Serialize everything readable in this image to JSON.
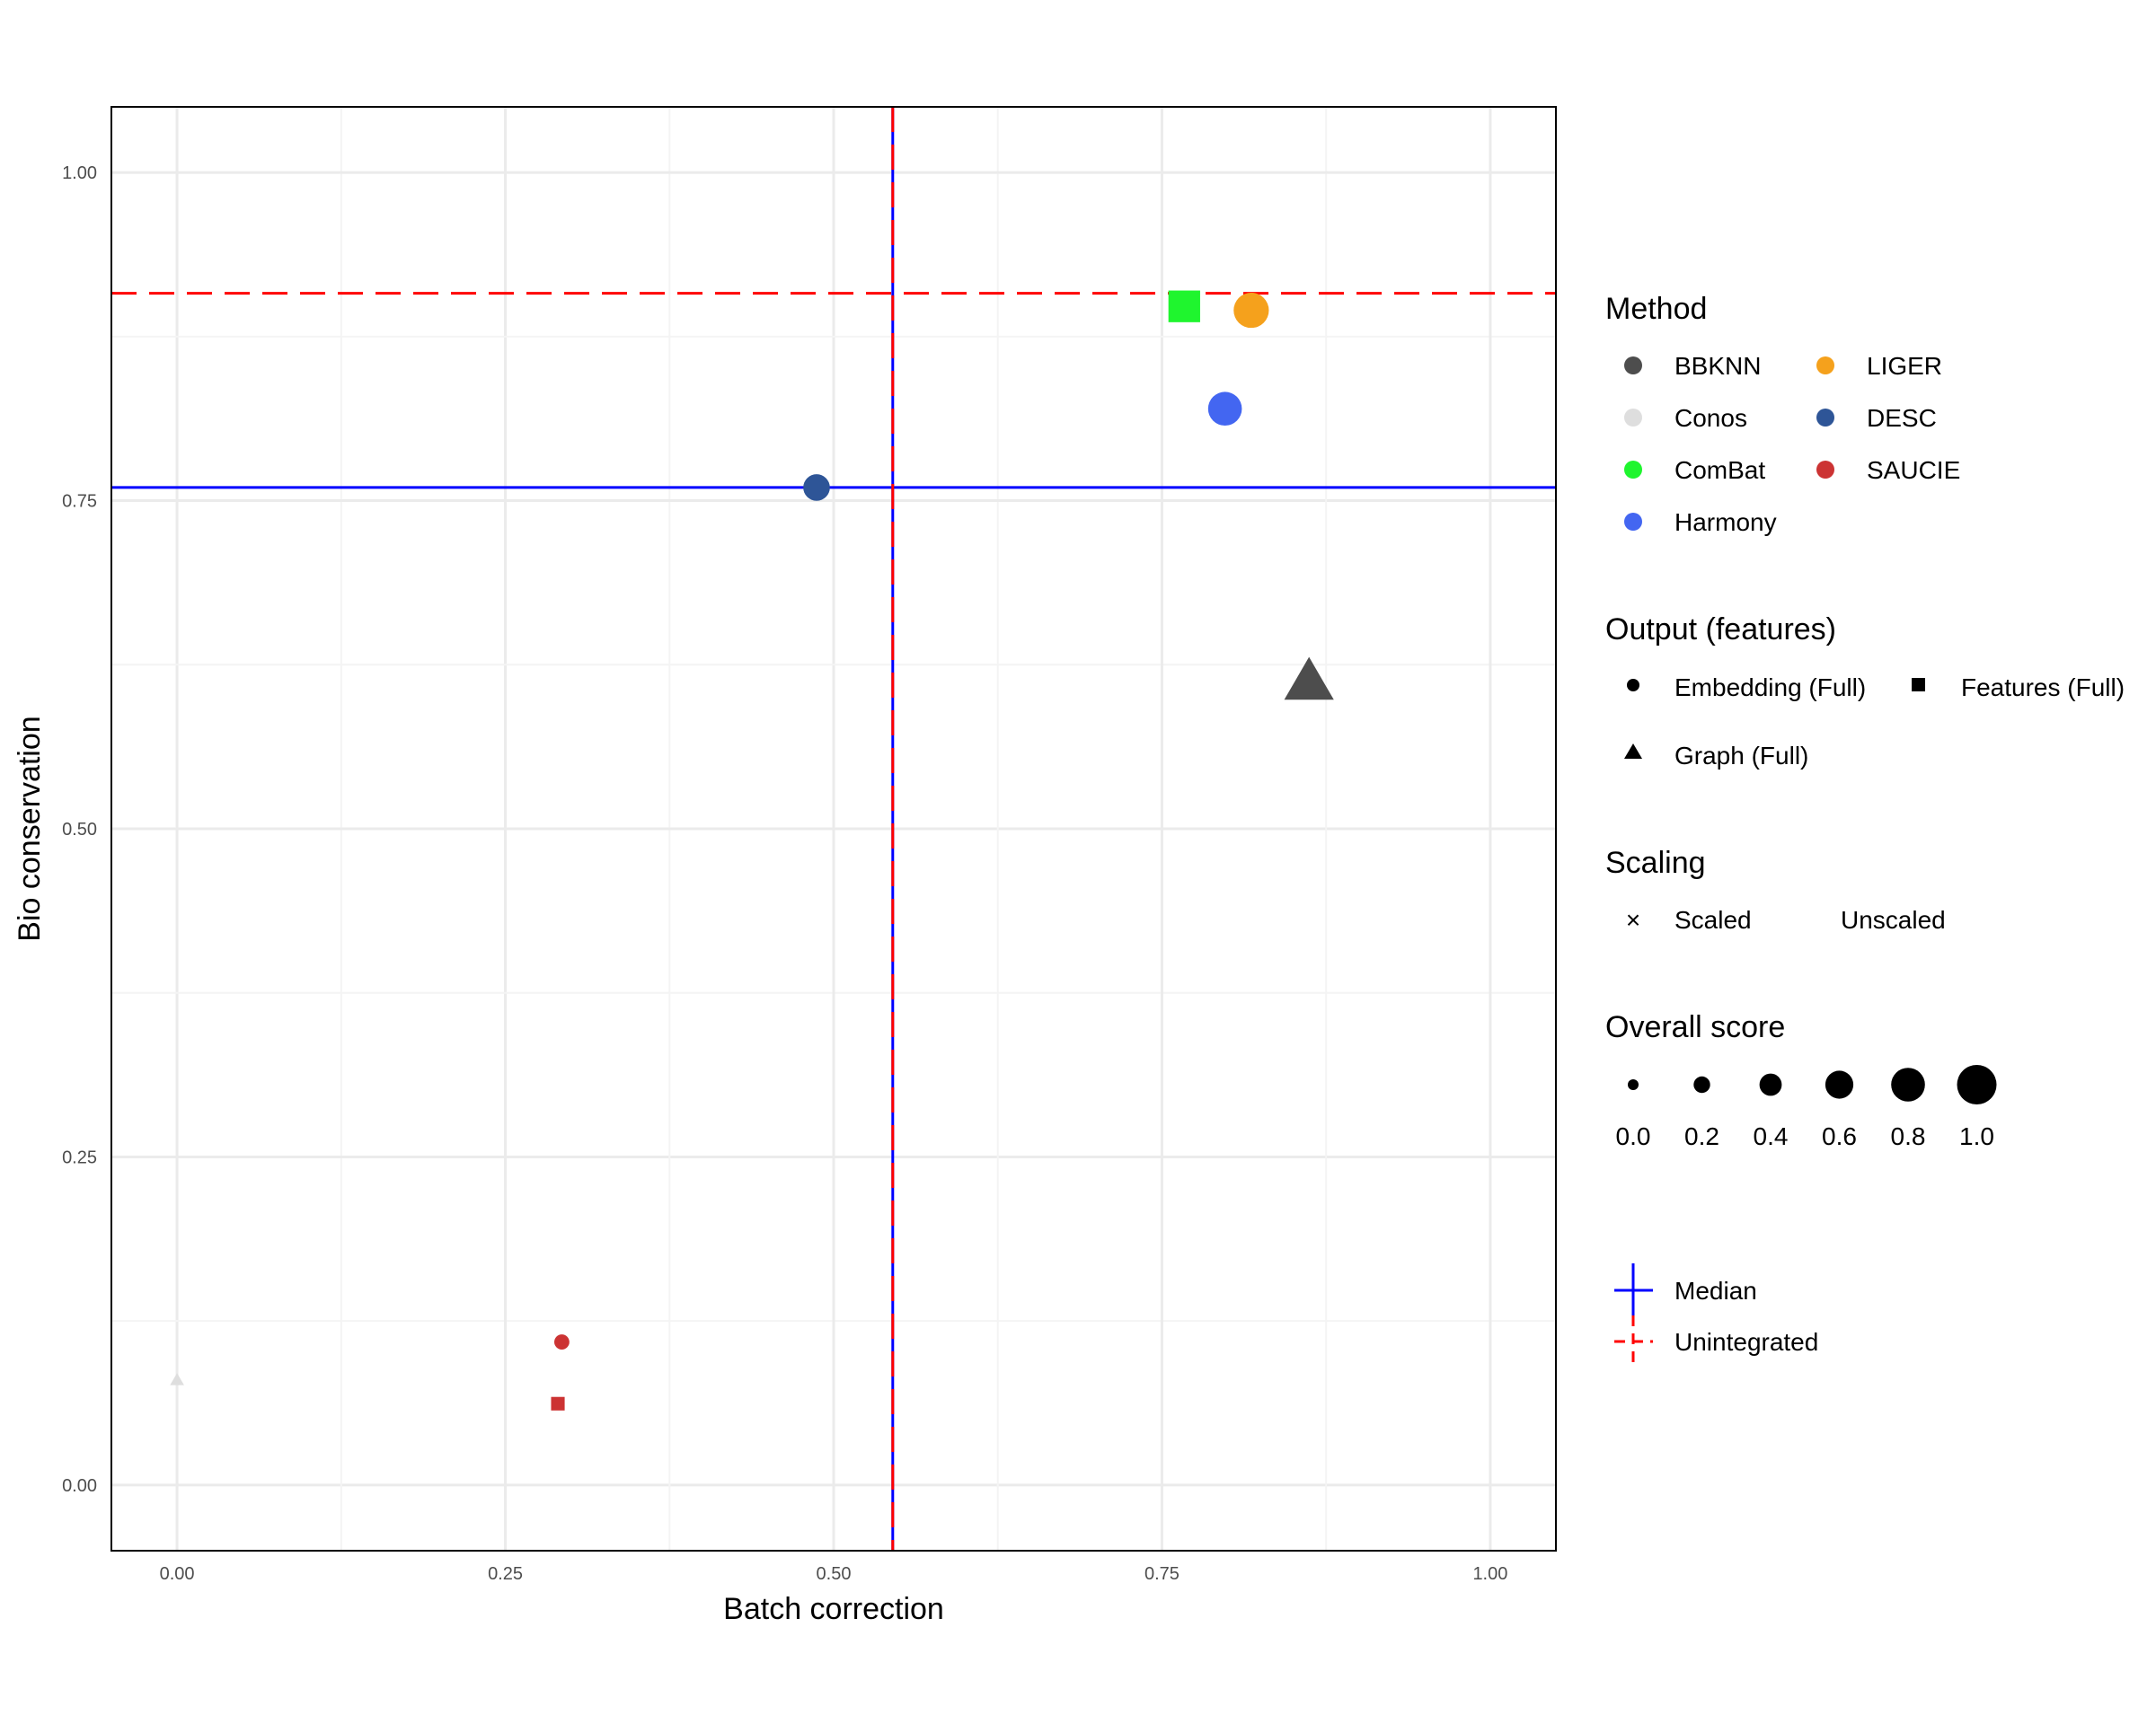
{
  "chart_data": {
    "type": "scatter",
    "xlabel": "Batch correction",
    "ylabel": "Bio conservation",
    "xlim": [
      -0.05,
      1.05
    ],
    "ylim": [
      -0.05,
      1.05
    ],
    "x_ticks": [
      0,
      0.25,
      0.5,
      0.75,
      1
    ],
    "x_tick_labels": [
      "0.00",
      "0.25",
      "0.50",
      "0.75",
      "1.00"
    ],
    "y_ticks": [
      0,
      0.25,
      0.5,
      0.75,
      1
    ],
    "y_tick_labels": [
      "0.00",
      "0.25",
      "0.50",
      "0.75",
      "1.00"
    ],
    "grid": true,
    "points": [
      {
        "method": "Conos",
        "output": "Graph (Full)",
        "x": 0.0,
        "y": 0.08,
        "score": 0.0
      },
      {
        "method": "SAUCIE",
        "output": "Embedding (Full)",
        "x": 0.293,
        "y": 0.109,
        "score": 0.15
      },
      {
        "method": "SAUCIE",
        "output": "Features (Full)",
        "x": 0.29,
        "y": 0.062,
        "score": 0.15
      },
      {
        "method": "DESC",
        "output": "Embedding (Full)",
        "x": 0.487,
        "y": 0.76,
        "score": 0.55
      },
      {
        "method": "ComBat",
        "output": "Features (Full)",
        "x": 0.767,
        "y": 0.898,
        "score": 0.85
      },
      {
        "method": "LIGER",
        "output": "Embedding (Full)",
        "x": 0.818,
        "y": 0.895,
        "score": 0.85
      },
      {
        "method": "Harmony",
        "output": "Embedding (Full)",
        "x": 0.798,
        "y": 0.82,
        "score": 0.8
      },
      {
        "method": "BBKNN",
        "output": "Graph (Full)",
        "x": 0.862,
        "y": 0.612,
        "score": 0.95
      }
    ],
    "reference_lines": {
      "median": {
        "x": 0.545,
        "y": 0.76,
        "color": "#0000ff"
      },
      "unintegrated": {
        "x": 0.545,
        "y": 0.908,
        "color": "#ff0000"
      }
    },
    "legend_placement": "right"
  },
  "legend": {
    "method": {
      "title": "Method",
      "items": [
        {
          "label": "BBKNN",
          "color": "#4d4d4d"
        },
        {
          "label": "LIGER",
          "color": "#f5a11c"
        },
        {
          "label": "Conos",
          "color": "#dedede"
        },
        {
          "label": "DESC",
          "color": "#2e5597"
        },
        {
          "label": "ComBat",
          "color": "#1ff52e"
        },
        {
          "label": "SAUCIE",
          "color": "#cc3333"
        },
        {
          "label": "Harmony",
          "color": "#4366f1"
        }
      ]
    },
    "output": {
      "title": "Output (features)",
      "items": [
        {
          "label": "Embedding (Full)",
          "shape": "circle"
        },
        {
          "label": "Features (Full)",
          "shape": "square"
        },
        {
          "label": "Graph (Full)",
          "shape": "triangle"
        }
      ]
    },
    "scaling": {
      "title": "Scaling",
      "items": [
        {
          "label": "Scaled",
          "symbol": "×"
        },
        {
          "label": "Unscaled",
          "symbol": ""
        }
      ]
    },
    "size": {
      "title": "Overall score",
      "values": [
        "0.0",
        "0.2",
        "0.4",
        "0.6",
        "0.8",
        "1.0"
      ]
    },
    "lines": {
      "median_label": "Median",
      "unintegrated_label": "Unintegrated"
    }
  }
}
